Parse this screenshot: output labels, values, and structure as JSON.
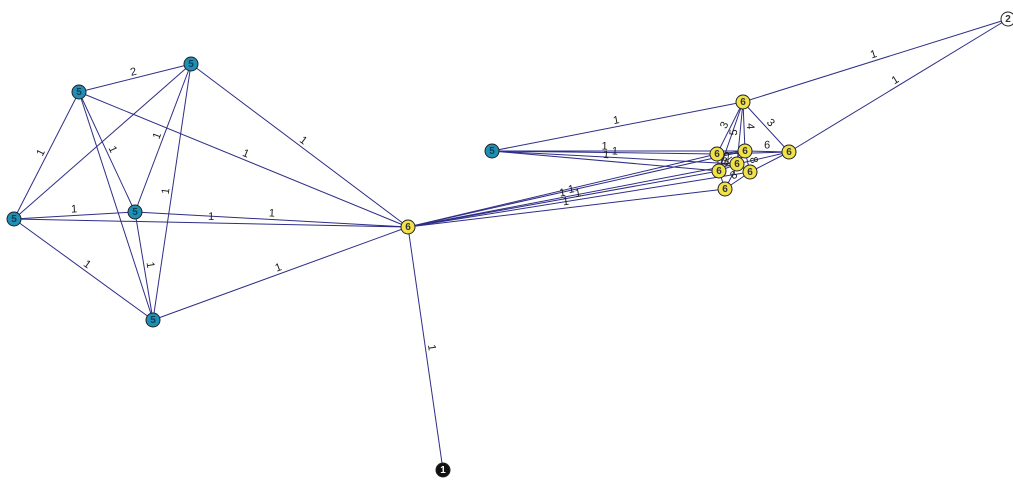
{
  "colors": {
    "edge": "#2e2e86",
    "teal_node": "#1f8fb5",
    "yellow_node": "#f2e24a",
    "white_node": "#ffffff",
    "black_node": "#111111",
    "node_stroke": "#222222"
  },
  "nodes": [
    {
      "id": "a1",
      "label": "5",
      "color": "teal"
    },
    {
      "id": "a2",
      "label": "5",
      "color": "teal"
    },
    {
      "id": "a3",
      "label": "5",
      "color": "teal"
    },
    {
      "id": "a4",
      "label": "5",
      "color": "teal"
    },
    {
      "id": "a5",
      "label": "5",
      "color": "teal"
    },
    {
      "id": "hub",
      "label": "6",
      "color": "yellow"
    },
    {
      "id": "bottom",
      "label": "1",
      "color": "black"
    },
    {
      "id": "top",
      "label": "2",
      "color": "white"
    },
    {
      "id": "b1",
      "label": "5",
      "color": "teal"
    },
    {
      "id": "c1",
      "label": "6",
      "color": "yellow"
    },
    {
      "id": "c2",
      "label": "6",
      "color": "yellow"
    },
    {
      "id": "c3",
      "label": "6",
      "color": "yellow"
    },
    {
      "id": "c4",
      "label": "6",
      "color": "yellow"
    },
    {
      "id": "c5",
      "label": "6",
      "color": "yellow"
    },
    {
      "id": "c6",
      "label": "6",
      "color": "yellow"
    },
    {
      "id": "c7",
      "label": "6",
      "color": "yellow"
    },
    {
      "id": "c8",
      "label": "6",
      "color": "yellow"
    }
  ],
  "edges": [
    {
      "source": "a1",
      "target": "a2",
      "label": "2"
    },
    {
      "source": "a1",
      "target": "a3",
      "label": "1"
    },
    {
      "source": "a1",
      "target": "a4",
      "label": "1"
    },
    {
      "source": "a1",
      "target": "a5",
      "label": ""
    },
    {
      "source": "a1",
      "target": "hub",
      "label": "1"
    },
    {
      "source": "a2",
      "target": "a3",
      "label": ""
    },
    {
      "source": "a2",
      "target": "a4",
      "label": "1"
    },
    {
      "source": "a2",
      "target": "a5",
      "label": "1"
    },
    {
      "source": "a2",
      "target": "hub",
      "label": "1"
    },
    {
      "source": "a3",
      "target": "a4",
      "label": "1"
    },
    {
      "source": "a3",
      "target": "a5",
      "label": "1"
    },
    {
      "source": "a3",
      "target": "hub",
      "label": "1"
    },
    {
      "source": "a4",
      "target": "a5",
      "label": "1"
    },
    {
      "source": "a4",
      "target": "hub",
      "label": "1"
    },
    {
      "source": "a5",
      "target": "hub",
      "label": "1"
    },
    {
      "source": "hub",
      "target": "bottom",
      "label": "1"
    },
    {
      "source": "b1",
      "target": "c1",
      "label": "1"
    },
    {
      "source": "b1",
      "target": "c3",
      "label": "1"
    },
    {
      "source": "b1",
      "target": "c5",
      "label": "1"
    },
    {
      "source": "b1",
      "target": "c4",
      "label": ""
    },
    {
      "source": "b1",
      "target": "c7",
      "label": "1"
    },
    {
      "source": "top",
      "target": "c1",
      "label": "1"
    },
    {
      "source": "top",
      "target": "c2",
      "label": "1"
    },
    {
      "source": "hub",
      "target": "c3",
      "label": ""
    },
    {
      "source": "hub",
      "target": "c4",
      "label": ""
    },
    {
      "source": "hub",
      "target": "c5",
      "label": "1"
    },
    {
      "source": "hub",
      "target": "c6",
      "label": "1"
    },
    {
      "source": "hub",
      "target": "c7",
      "label": "1"
    },
    {
      "source": "hub",
      "target": "c8",
      "label": "1"
    },
    {
      "source": "c1",
      "target": "c2",
      "label": "3"
    },
    {
      "source": "c1",
      "target": "c3",
      "label": "3"
    },
    {
      "source": "c1",
      "target": "c4",
      "label": "4"
    },
    {
      "source": "c1",
      "target": "c5",
      "label": ""
    },
    {
      "source": "c1",
      "target": "c7",
      "label": "5"
    },
    {
      "source": "c2",
      "target": "c3",
      "label": ""
    },
    {
      "source": "c2",
      "target": "c4",
      "label": "6"
    },
    {
      "source": "c2",
      "target": "c6",
      "label": ""
    },
    {
      "source": "c2",
      "target": "c7",
      "label": ""
    },
    {
      "source": "c3",
      "target": "c4",
      "label": ""
    },
    {
      "source": "c3",
      "target": "c5",
      "label": "8"
    },
    {
      "source": "c4",
      "target": "c5",
      "label": "2"
    },
    {
      "source": "c4",
      "target": "c6",
      "label": "8"
    },
    {
      "source": "c4",
      "target": "c8",
      "label": ""
    },
    {
      "source": "c5",
      "target": "c7",
      "label": "3"
    },
    {
      "source": "c6",
      "target": "c7",
      "label": ""
    },
    {
      "source": "c6",
      "target": "c8",
      "label": "8"
    },
    {
      "source": "c5",
      "target": "c8",
      "label": ""
    }
  ]
}
